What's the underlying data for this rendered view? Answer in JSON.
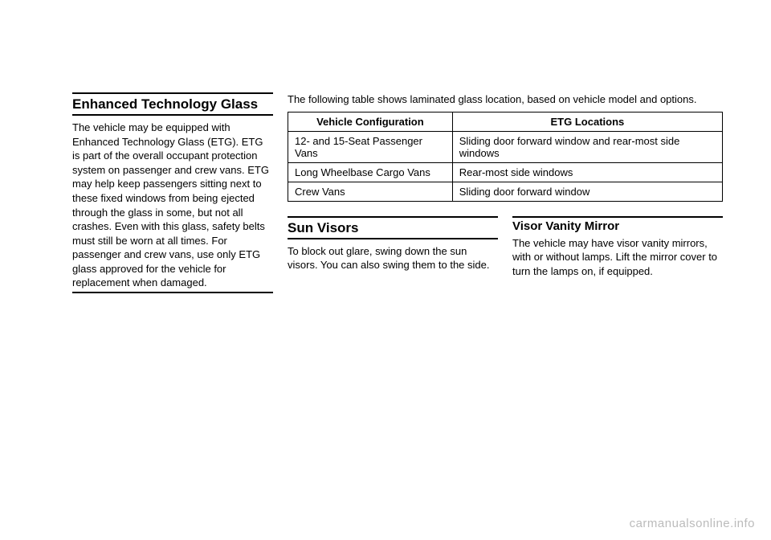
{
  "left": {
    "heading": "Enhanced Technology Glass",
    "body": "The vehicle may be equipped with Enhanced Technology Glass (ETG). ETG is part of the overall occupant protection system on passenger and crew vans. ETG may help keep passengers sitting next to these fixed windows from being ejected through the glass in some, but not all crashes. Even with this glass, safety belts must still be worn at all times. For passenger and crew vans, use only ETG glass approved for the vehicle for replacement when damaged."
  },
  "right": {
    "intro": "The following table shows laminated glass location, based on vehicle model and options.",
    "table": {
      "headers": [
        "Vehicle Configuration",
        "ETG Locations"
      ],
      "rows": [
        [
          "12- and 15-Seat Passenger Vans",
          "Sliding door forward window and rear-most side windows"
        ],
        [
          "Long Wheelbase Cargo Vans",
          "Rear-most side windows"
        ],
        [
          "Crew Vans",
          "Sliding door forward window"
        ]
      ]
    },
    "lower": {
      "sunvisors": {
        "heading": "Sun Visors",
        "body": "To block out glare, swing down the sun visors. You can also swing them to the side."
      },
      "vanity": {
        "heading": "Visor Vanity Mirror",
        "body": "The vehicle may have visor vanity mirrors, with or without lamps. Lift the mirror cover to turn the lamps on, if equipped."
      }
    }
  },
  "watermark": "carmanualsonline.info"
}
